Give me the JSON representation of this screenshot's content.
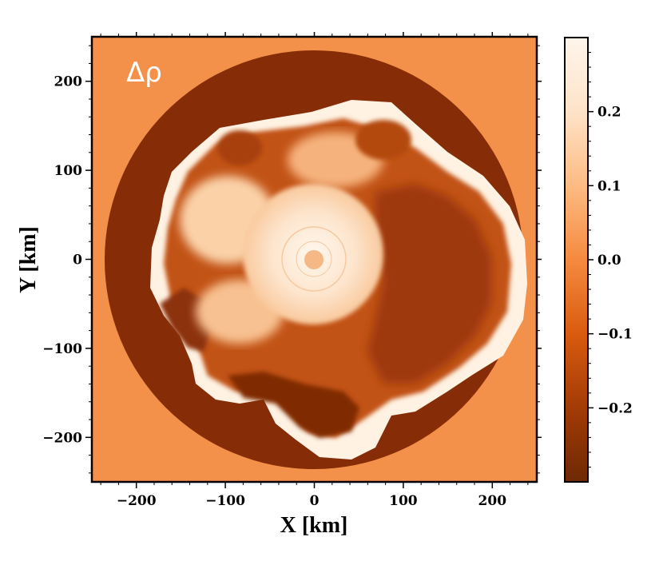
{
  "chart_data": {
    "type": "heatmap",
    "annotation": "Δρ",
    "xlabel": "X [km]",
    "ylabel": "Y [km]",
    "xlim": [
      -250,
      250
    ],
    "ylim": [
      -250,
      250
    ],
    "x_ticks": [
      -200,
      -100,
      0,
      100,
      200
    ],
    "x_tick_labels": [
      "−200",
      "−100",
      "0",
      "100",
      "200"
    ],
    "y_ticks": [
      -200,
      -100,
      0,
      100,
      200
    ],
    "y_tick_labels": [
      "−200",
      "−100",
      "0",
      "100",
      "200"
    ],
    "colorbar": {
      "range": [
        -0.3,
        0.3
      ],
      "ticks": [
        0.2,
        0.1,
        0.0,
        -0.1,
        -0.2
      ],
      "tick_labels": [
        "0.2",
        "0.1",
        "0.0",
        "−0.1",
        "−0.2"
      ],
      "colormap": "Oranges_r",
      "colors": [
        "#6e2904",
        "#a33b06",
        "#d95b0f",
        "#f58a3f",
        "#fdbb83",
        "#fee3c8",
        "#fff5eb"
      ]
    },
    "features": {
      "background_value": -0.05,
      "shell_outer_radius_km": 235,
      "shell_inner_radius_km": 205,
      "shell_value": -0.3,
      "central_core_value": 0.3
    },
    "grid": false
  }
}
